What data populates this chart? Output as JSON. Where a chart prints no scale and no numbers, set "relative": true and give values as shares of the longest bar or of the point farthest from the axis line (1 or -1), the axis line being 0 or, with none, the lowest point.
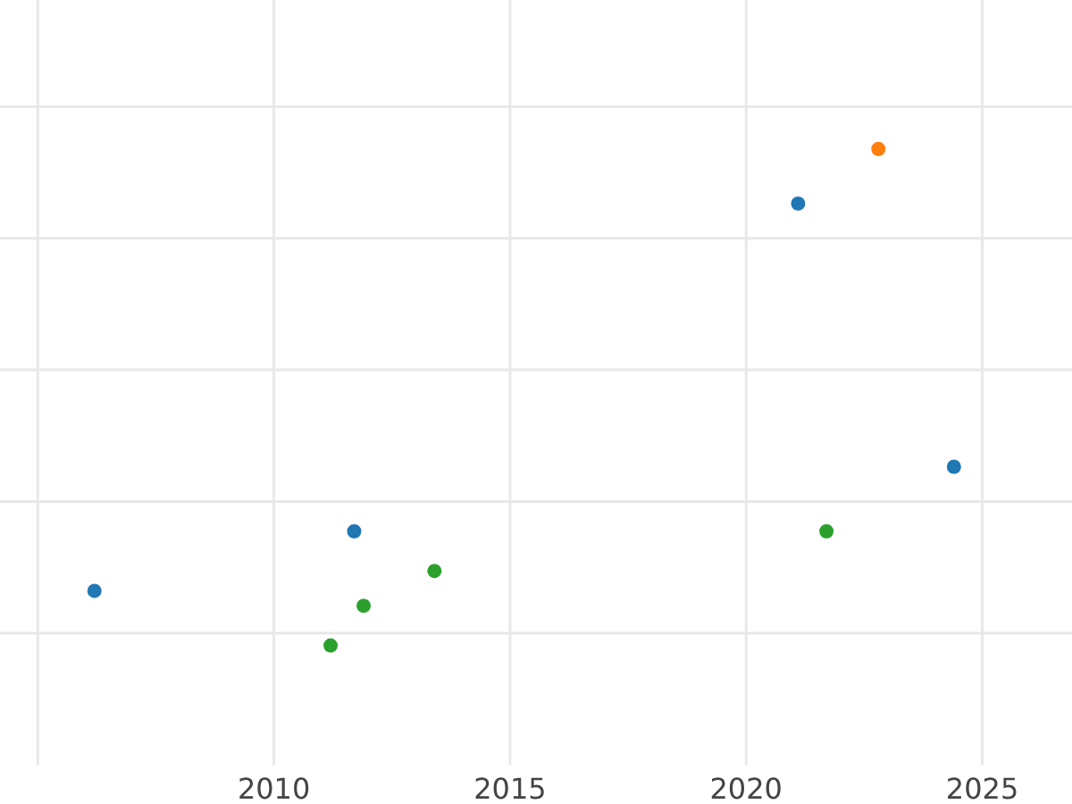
{
  "chart_data": {
    "type": "scatter",
    "relative": true,
    "grid": true,
    "marker": "circle",
    "xlim": [
      2004.2,
      2026.9
    ],
    "xticks": [
      {
        "value": 2005,
        "label": null
      },
      2010,
      2015,
      2020,
      2025
    ],
    "series": [
      {
        "color": "#1f77b4",
        "x": [
          2006.2,
          2011.7,
          2021.1,
          2024.4
        ],
        "values": [
          0.11,
          0.23,
          0.89,
          0.36
        ]
      },
      {
        "color": "#ff7f0e",
        "x": [
          2022.8
        ],
        "values": [
          1
        ]
      },
      {
        "color": "#2ca02c",
        "x": [
          2011.2,
          2011.9,
          2013.4,
          2021.7
        ],
        "values": [
          0,
          0.08,
          0.15,
          0.23
        ]
      }
    ]
  }
}
